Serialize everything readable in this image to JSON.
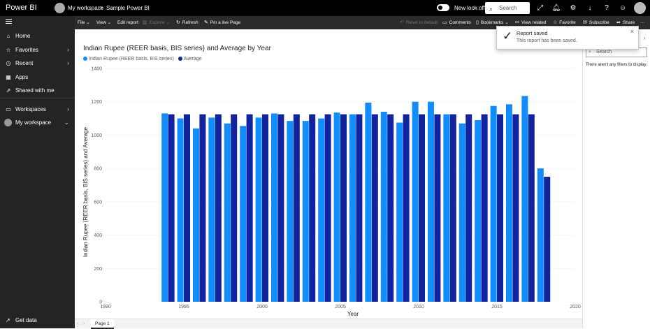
{
  "topbar": {
    "app_name": "Power BI",
    "workspace": "My workspace",
    "separator": ">",
    "report_name": "Sample Power BI",
    "new_look_label": "New look off",
    "search_placeholder": "Search"
  },
  "leftnav": {
    "items": [
      {
        "label": "Home"
      },
      {
        "label": "Favorites"
      },
      {
        "label": "Recent"
      },
      {
        "label": "Apps"
      },
      {
        "label": "Shared with me"
      },
      {
        "label": "Workspaces"
      },
      {
        "label": "My workspace"
      }
    ],
    "get_data": "Get data"
  },
  "actionbar": {
    "file": "File",
    "view": "View",
    "edit_report": "Edit report",
    "explore": "Explore",
    "refresh": "Refresh",
    "pin_live": "Pin a live Page",
    "reset_default": "Reset to default",
    "comments": "Comments",
    "bookmarks": "Bookmarks",
    "view_related": "View related",
    "favorite": "Favorite",
    "subscribe": "Subscribe",
    "share": "Share",
    "more": "···"
  },
  "toast": {
    "title": "Report saved",
    "message": "This report has been saved."
  },
  "filters": {
    "search_placeholder": "Search",
    "empty_text": "There aren't any filters to display."
  },
  "tabs": {
    "page1": "Page 1"
  },
  "colors": {
    "series1": "#118DFF",
    "series2": "#12239E"
  },
  "chart_data": {
    "type": "bar",
    "title": "Indian Rupee (REER basis, BIS series) and Average by Year",
    "xlabel": "Year",
    "ylabel": "Indian Rupee (REER basis, BIS series) and Average",
    "ylim": [
      0,
      1400
    ],
    "xlim": [
      1990,
      2020
    ],
    "y_ticks": [
      0,
      200,
      400,
      600,
      800,
      1000,
      1200,
      1400
    ],
    "x_ticks": [
      1990,
      1995,
      2000,
      2005,
      2010,
      2015,
      2020
    ],
    "grid": true,
    "legend_position": "top-left",
    "x": [
      1994,
      1995,
      1996,
      1997,
      1998,
      1999,
      2000,
      2001,
      2002,
      2003,
      2004,
      2005,
      2006,
      2007,
      2008,
      2009,
      2010,
      2011,
      2012,
      2013,
      2014,
      2015,
      2016,
      2017,
      2018
    ],
    "series": [
      {
        "name": "Indian Rupee (REER basis, BIS series)",
        "values": [
          1130,
          1100,
          1040,
          1105,
          1070,
          1055,
          1105,
          1130,
          1085,
          1085,
          1100,
          1135,
          1125,
          1195,
          1140,
          1075,
          1200,
          1200,
          1125,
          1070,
          1090,
          1175,
          1185,
          1235,
          800
        ]
      },
      {
        "name": "Average",
        "values": [
          1125,
          1125,
          1125,
          1125,
          1125,
          1125,
          1125,
          1125,
          1125,
          1125,
          1125,
          1125,
          1125,
          1125,
          1125,
          1125,
          1125,
          1125,
          1125,
          1125,
          1125,
          1125,
          1125,
          1125,
          750
        ]
      }
    ]
  }
}
